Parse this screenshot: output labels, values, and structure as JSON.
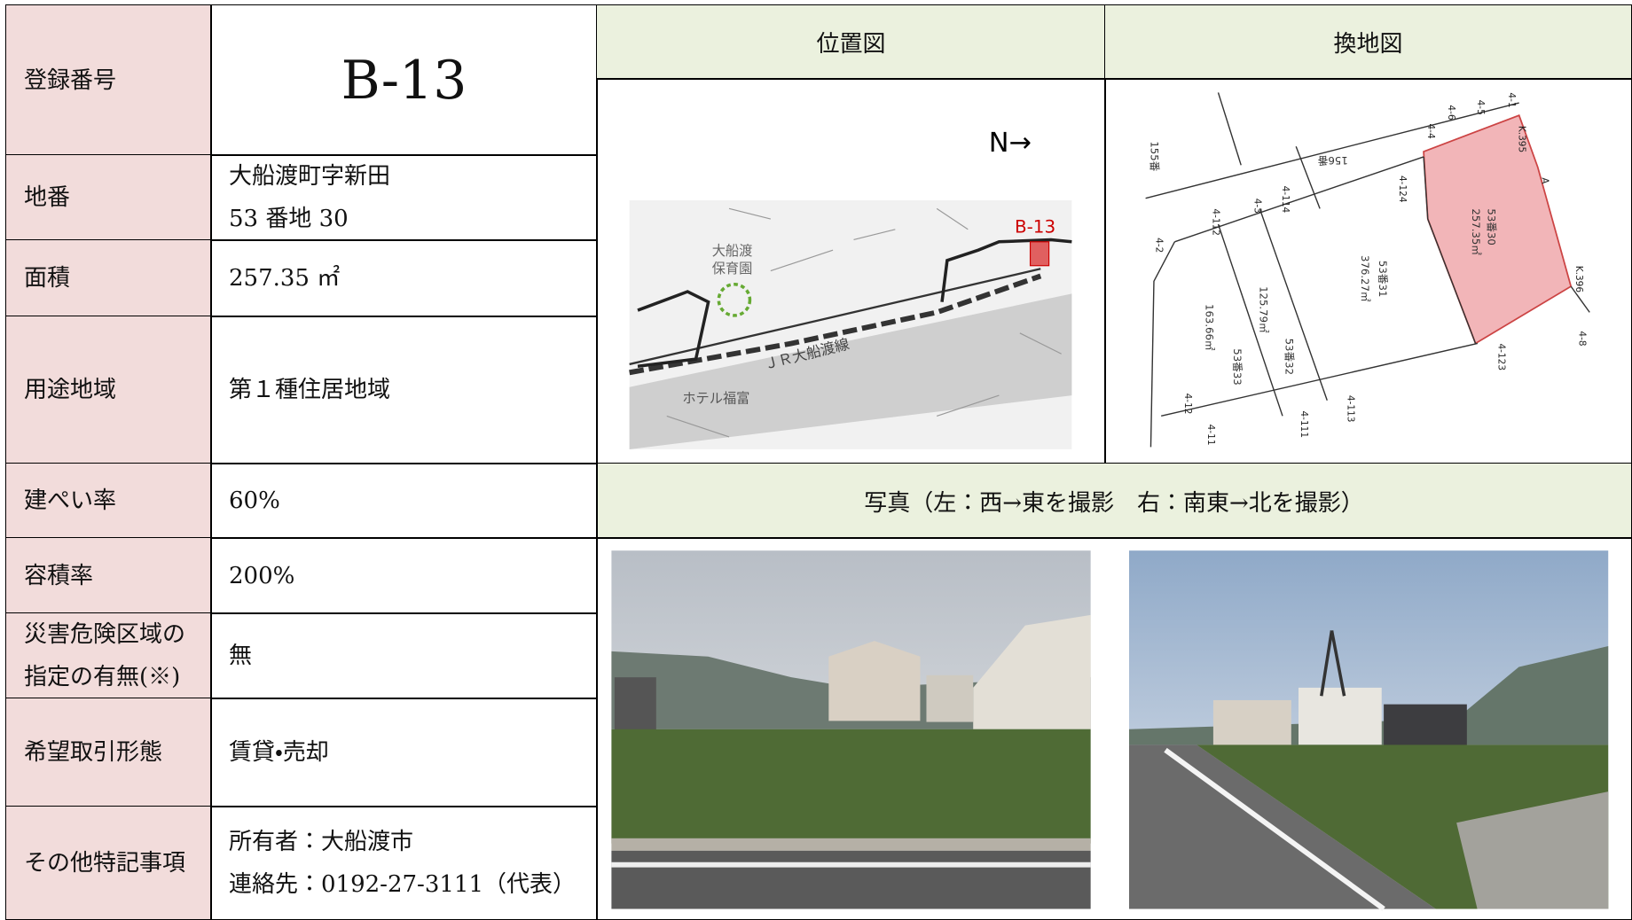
{
  "registration": {
    "label": "登録番号",
    "value": "B-13"
  },
  "rows": [
    {
      "label": "地番",
      "value": [
        "大船渡町字新田",
        "53 番地 30"
      ]
    },
    {
      "label": "面積",
      "value": "257.35 ㎡"
    },
    {
      "label": "用途地域",
      "value": "第１種住居地域"
    },
    {
      "label": "建ぺい率",
      "value": "60%"
    },
    {
      "label": "容積率",
      "value": "200%"
    },
    {
      "label": [
        "災害危険区域の",
        "指定の有無(※)"
      ],
      "value": "無"
    },
    {
      "label": "希望取引形態",
      "value": "賃貸・売却"
    },
    {
      "label": "その他特記事項",
      "value": [
        "所有者：大船渡市",
        "連絡先：0192-27-3111（代表）"
      ]
    }
  ],
  "location_map": {
    "title": "位置図",
    "north": "N→",
    "site": "B-13",
    "nursery": [
      "大船渡",
      "保育園"
    ],
    "railway": "ＪＲ大船渡線",
    "hotel": "ホテル福富"
  },
  "replot_map": {
    "title": "換地図",
    "lots": [
      {
        "number": "53番30",
        "area": "257.35㎡"
      },
      {
        "number": "53番31",
        "area": "376.27㎡"
      },
      {
        "number": "53番32",
        "area": "125.79㎡"
      },
      {
        "number": "53番33",
        "area": "163.66㎡"
      }
    ],
    "markers": [
      "4-1",
      "4-5",
      "4-6",
      "4-4",
      "4-124",
      "4-114",
      "4-3",
      "4-112",
      "4-2",
      "4-8",
      "4-123",
      "4-113",
      "4-111",
      "4-11",
      "4-12",
      "K.395",
      "K.396",
      "A"
    ],
    "neighbors": [
      "156番",
      "155番"
    ]
  },
  "photos": {
    "caption": "写真（左：西→東を撮影　右：南東→北を撮影）"
  }
}
